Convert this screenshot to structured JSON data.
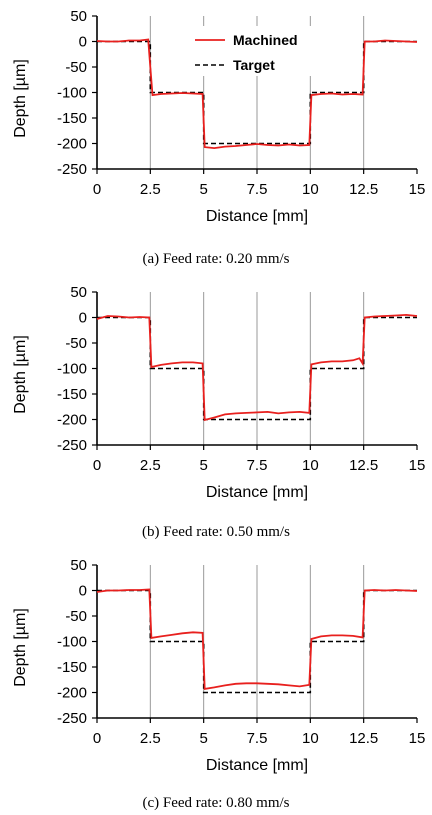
{
  "chart_data": [
    {
      "type": "line",
      "caption": "(a) Feed rate: 0.20 mm/s",
      "xlabel": "Distance [mm]",
      "ylabel": "Depth [µm]",
      "xlim": [
        0,
        15
      ],
      "ylim": [
        -250,
        50
      ],
      "xticks": [
        "0",
        "2.5",
        "5",
        "7.5",
        "10",
        "12.5",
        "15"
      ],
      "yticks": [
        "50",
        "0",
        "-50",
        "-100",
        "-150",
        "-200",
        "-250"
      ],
      "grid": "vertical",
      "legend": {
        "placement": "top-center",
        "entries": [
          "Machined",
          "Target"
        ]
      },
      "series": [
        {
          "name": "Machined",
          "color": "#e8201e",
          "style": "solid",
          "x": [
            0,
            0.5,
            1,
            1.5,
            2,
            2.4,
            2.5,
            2.6,
            3,
            3.5,
            4,
            4.5,
            4.95,
            5.05,
            5.5,
            6,
            6.5,
            7,
            7.5,
            8,
            8.5,
            9,
            9.5,
            9.95,
            10.05,
            10.5,
            11,
            11.5,
            12,
            12.45,
            12.55,
            13,
            13.5,
            14,
            14.5,
            15
          ],
          "y": [
            1,
            0,
            0,
            2,
            2,
            4,
            -50,
            -105,
            -103,
            -102,
            -101,
            -102,
            -103,
            -207,
            -209,
            -206,
            -205,
            -203,
            -201,
            -203,
            -204,
            -202,
            -204,
            -203,
            -105,
            -103,
            -102,
            -104,
            -103,
            -104,
            0,
            0,
            2,
            1,
            0,
            -1
          ]
        },
        {
          "name": "Target",
          "color": "#000000",
          "style": "dashed",
          "x": [
            0,
            2.5,
            2.5,
            5,
            5,
            10,
            10,
            12.5,
            12.5,
            15
          ],
          "y": [
            0,
            0,
            -100,
            -100,
            -200,
            -200,
            -100,
            -100,
            0,
            0
          ]
        }
      ]
    },
    {
      "type": "line",
      "caption": "(b) Feed rate: 0.50 mm/s",
      "xlabel": "Distance [mm]",
      "ylabel": "Depth [µm]",
      "xlim": [
        0,
        15
      ],
      "ylim": [
        -250,
        50
      ],
      "xticks": [
        "0",
        "2.5",
        "5",
        "7.5",
        "10",
        "12.5",
        "15"
      ],
      "yticks": [
        "50",
        "0",
        "-50",
        "-100",
        "-150",
        "-200",
        "-250"
      ],
      "grid": "vertical",
      "series": [
        {
          "name": "Machined",
          "color": "#e8201e",
          "style": "solid",
          "x": [
            0,
            0.5,
            1,
            1.5,
            2,
            2.45,
            2.55,
            3,
            3.5,
            4,
            4.5,
            4.95,
            5.05,
            5.5,
            6,
            6.5,
            7,
            7.5,
            8,
            8.5,
            9,
            9.5,
            9.95,
            10.05,
            10.5,
            11,
            11.5,
            12,
            12.3,
            12.45,
            12.55,
            13,
            13.5,
            14,
            14.5,
            15
          ],
          "y": [
            -3,
            3,
            2,
            0,
            1,
            0,
            -97,
            -93,
            -90,
            -88,
            -88,
            -90,
            -201,
            -196,
            -190,
            -188,
            -187,
            -186,
            -185,
            -188,
            -186,
            -185,
            -187,
            -92,
            -88,
            -86,
            -86,
            -84,
            -80,
            -90,
            0,
            2,
            3,
            4,
            5,
            3
          ]
        },
        {
          "name": "Target",
          "color": "#000000",
          "style": "dashed",
          "x": [
            0,
            2.5,
            2.5,
            5,
            5,
            10,
            10,
            12.5,
            12.5,
            15
          ],
          "y": [
            0,
            0,
            -100,
            -100,
            -200,
            -200,
            -100,
            -100,
            0,
            0
          ]
        }
      ]
    },
    {
      "type": "line",
      "caption": "(c) Feed rate: 0.80 mm/s",
      "xlabel": "Distance [mm]",
      "ylabel": "Depth [µm]",
      "xlim": [
        0,
        15
      ],
      "ylim": [
        -250,
        50
      ],
      "xticks": [
        "0",
        "2.5",
        "5",
        "7.5",
        "10",
        "12.5",
        "15"
      ],
      "yticks": [
        "50",
        "0",
        "-50",
        "-100",
        "-150",
        "-200",
        "-250"
      ],
      "grid": "vertical",
      "series": [
        {
          "name": "Machined",
          "color": "#e8201e",
          "style": "solid",
          "x": [
            0,
            0.5,
            1,
            1.5,
            2,
            2.45,
            2.55,
            3,
            3.5,
            4,
            4.5,
            4.95,
            5.05,
            5.5,
            6,
            6.5,
            7,
            7.5,
            8,
            8.5,
            9,
            9.5,
            9.95,
            10.05,
            10.5,
            11,
            11.5,
            12,
            12.45,
            12.55,
            13,
            13.5,
            14,
            14.5,
            15
          ],
          "y": [
            -3,
            0,
            0,
            1,
            1,
            2,
            -93,
            -90,
            -87,
            -84,
            -82,
            -83,
            -193,
            -190,
            -186,
            -183,
            -182,
            -182,
            -183,
            -184,
            -186,
            -188,
            -185,
            -95,
            -90,
            -88,
            -88,
            -89,
            -92,
            0,
            1,
            0,
            1,
            0,
            -1
          ]
        },
        {
          "name": "Target",
          "color": "#000000",
          "style": "dashed",
          "x": [
            0,
            2.5,
            2.5,
            5,
            5,
            10,
            10,
            12.5,
            12.5,
            15
          ],
          "y": [
            0,
            0,
            -100,
            -100,
            -200,
            -200,
            -100,
            -100,
            0,
            0
          ]
        }
      ]
    }
  ]
}
